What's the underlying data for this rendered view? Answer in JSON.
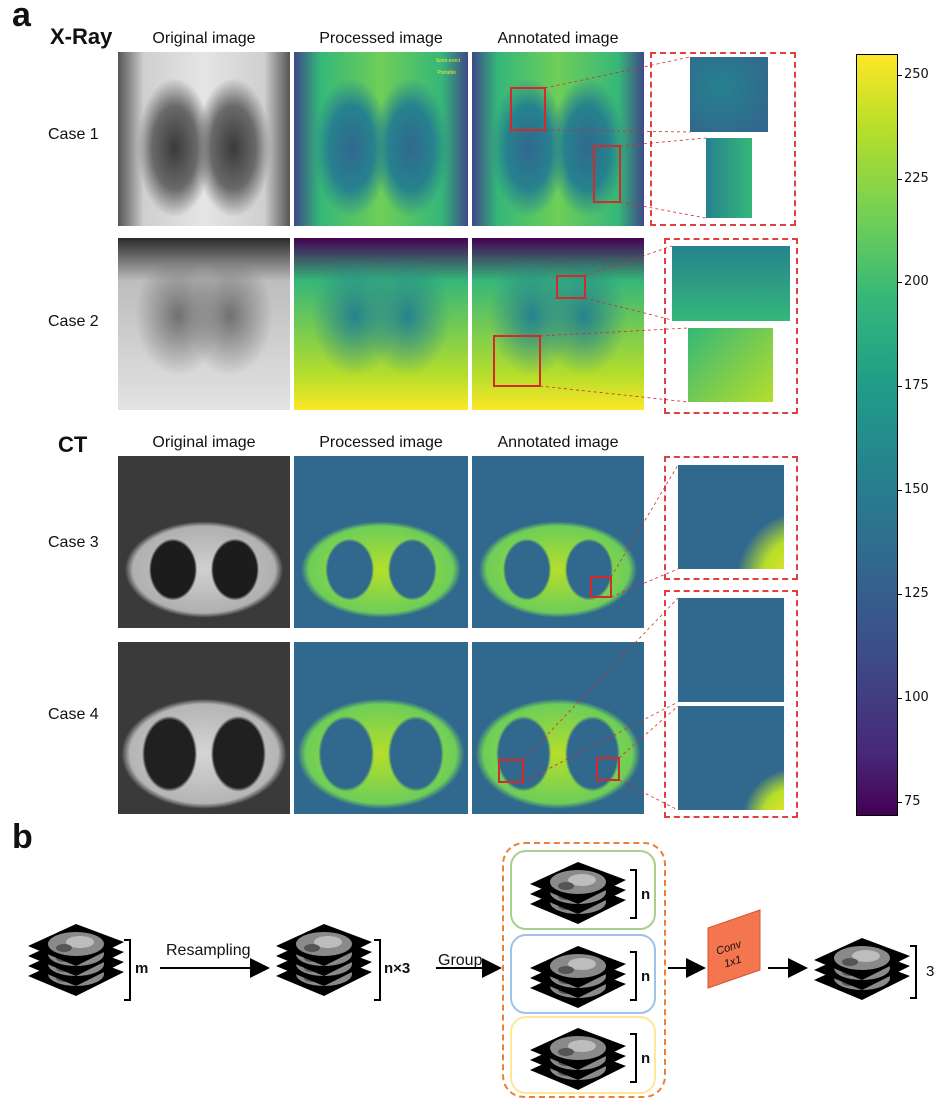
{
  "panel_a": {
    "letter": "a",
    "xray": {
      "section_title": "X-Ray",
      "columns": [
        "Original image",
        "Processed image",
        "Annotated image"
      ],
      "cases": [
        "Case 1",
        "Case 2"
      ],
      "film_text_top": "Semi-erect",
      "film_text_bottom": "Portable"
    },
    "ct": {
      "section_title": "CT",
      "columns": [
        "Original image",
        "Processed image",
        "Annotated image"
      ],
      "cases": [
        "Case 3",
        "Case 4"
      ]
    },
    "colorbar": {
      "colormap": "viridis",
      "ticks": [
        75,
        100,
        125,
        150,
        175,
        200,
        225,
        250
      ],
      "range": [
        72,
        255
      ],
      "colors": [
        "#440154",
        "#482878",
        "#3e4989",
        "#31688e",
        "#26828e",
        "#1f9e89",
        "#35b779",
        "#6ece58",
        "#b5de2b",
        "#fde725"
      ]
    },
    "annotation_color": "#d42a2a",
    "dashed_color": "#e04040"
  },
  "panel_b": {
    "letter": "b",
    "resampling_label": "Resampling",
    "group_label": "Group",
    "stack_m_label": "m",
    "stack_n3_label": "n×3",
    "group_n_labels": [
      "n",
      "n",
      "n"
    ],
    "conv_label_line1": "Conv",
    "conv_label_line2": "1x1",
    "output_label": "3",
    "group_border_color": "#e8823a",
    "group_colors": [
      "#a8d08d",
      "#9dc3e6",
      "#ffe699"
    ],
    "conv_color": "#f4764f"
  }
}
